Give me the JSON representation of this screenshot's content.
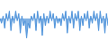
{
  "chart_data": {
    "type": "area",
    "x": [
      0,
      1,
      2,
      3,
      4,
      5,
      6,
      7,
      8,
      9,
      10,
      11,
      12,
      13,
      14,
      15,
      16,
      17,
      18,
      19,
      20,
      21,
      22,
      23,
      24,
      25,
      26,
      27,
      28,
      29,
      30,
      31,
      32,
      33,
      34,
      35,
      36,
      37,
      38,
      39,
      40,
      41,
      42,
      43,
      44,
      45,
      46,
      47,
      48,
      49,
      50,
      51,
      52,
      53,
      54,
      55,
      56,
      57,
      58,
      59,
      60,
      61,
      62,
      63,
      64,
      65,
      66,
      67,
      68,
      69
    ],
    "values": [
      0,
      -2,
      1,
      -4,
      2,
      -1,
      3,
      -5,
      1,
      -2,
      3,
      -1,
      2,
      -6,
      1,
      -3,
      -1,
      -8,
      -2,
      -4,
      1,
      -1,
      2,
      -5,
      3,
      -2,
      1,
      -7,
      2,
      -3,
      1,
      -2,
      3,
      -1,
      2,
      -4,
      1,
      -2,
      0,
      -3,
      2,
      -1,
      3,
      -6,
      1,
      -2,
      3,
      -4,
      2,
      -1,
      3,
      -5,
      1,
      -3,
      2,
      -1,
      3,
      -4,
      1,
      -2,
      3,
      -1,
      2,
      -5,
      3,
      -2,
      1,
      -6,
      2,
      -3
    ],
    "color": "#4a90d9",
    "xlim": [
      0,
      69
    ],
    "ylim": [
      -8.8,
      7.5
    ],
    "grid": false,
    "tick_labels": false
  }
}
